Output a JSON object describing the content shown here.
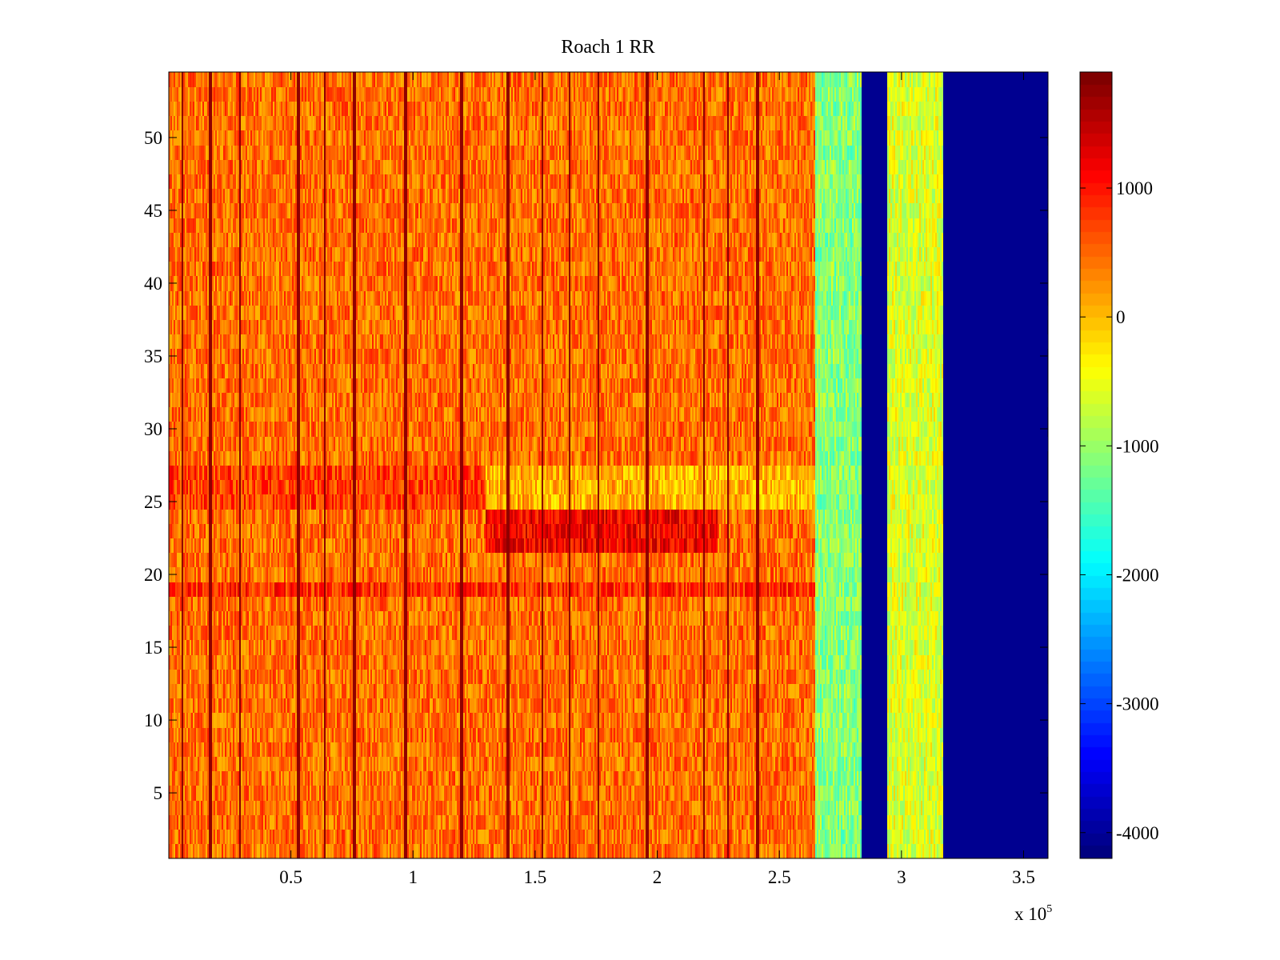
{
  "chart_data": {
    "type": "heatmap",
    "title": "Roach 1 RR",
    "xlabel": "",
    "ylabel": "",
    "x_multiplier_label": "x 10",
    "x_multiplier_exponent": "5",
    "xlim": [
      0,
      360000
    ],
    "ylim": [
      0.5,
      54.5
    ],
    "x_ticks": [
      {
        "value": 50000,
        "label": "0.5"
      },
      {
        "value": 100000,
        "label": "1"
      },
      {
        "value": 150000,
        "label": "1.5"
      },
      {
        "value": 200000,
        "label": "2"
      },
      {
        "value": 250000,
        "label": "2.5"
      },
      {
        "value": 300000,
        "label": "3"
      },
      {
        "value": 350000,
        "label": "3.5"
      }
    ],
    "y_ticks": [
      {
        "value": 5,
        "label": "5"
      },
      {
        "value": 10,
        "label": "10"
      },
      {
        "value": 15,
        "label": "15"
      },
      {
        "value": 20,
        "label": "20"
      },
      {
        "value": 25,
        "label": "25"
      },
      {
        "value": 30,
        "label": "30"
      },
      {
        "value": 35,
        "label": "35"
      },
      {
        "value": 40,
        "label": "40"
      },
      {
        "value": 45,
        "label": "45"
      },
      {
        "value": 50,
        "label": "50"
      }
    ],
    "colorbar": {
      "colormap": "jet",
      "range": [
        -4200,
        1900
      ],
      "ticks": [
        {
          "value": 1000,
          "label": "1000"
        },
        {
          "value": 0,
          "label": "0"
        },
        {
          "value": -1000,
          "label": "-1000"
        },
        {
          "value": -2000,
          "label": "-2000"
        },
        {
          "value": -3000,
          "label": "-3000"
        },
        {
          "value": -4000,
          "label": "-4000"
        }
      ]
    },
    "rows": 54,
    "regions": [
      {
        "x_start": 0,
        "x_end": 265000,
        "base_value": 450,
        "description": "noisy orange/red band"
      },
      {
        "x_start": 265000,
        "x_end": 284000,
        "base_value": -1100,
        "description": "noisy cyan/green band"
      },
      {
        "x_start": 284000,
        "x_end": 294000,
        "base_value": -4100,
        "description": "dark blue gap"
      },
      {
        "x_start": 294000,
        "x_end": 317000,
        "base_value": -600,
        "description": "noisy yellow/green band"
      },
      {
        "x_start": 317000,
        "x_end": 360000,
        "base_value": -4100,
        "description": "dark blue"
      }
    ],
    "row_bands": [
      {
        "rows": [
          22,
          23,
          24
        ],
        "x_start": 130000,
        "x_end": 225000,
        "offset": 700
      },
      {
        "rows": [
          19
        ],
        "x_start": 0,
        "x_end": 265000,
        "offset": 400
      },
      {
        "rows": [
          25,
          26,
          27
        ],
        "x_start": 0,
        "x_end": 130000,
        "offset": 300
      },
      {
        "rows": [
          25,
          26,
          27
        ],
        "x_start": 130000,
        "x_end": 265000,
        "offset": -400
      }
    ],
    "dark_column_lines_x": [
      5500,
      17000,
      29000,
      53000,
      64000,
      76000,
      97000,
      120000,
      139000,
      153000,
      164000,
      176000,
      196000,
      219000,
      229000,
      241000,
      284000,
      316000
    ]
  }
}
